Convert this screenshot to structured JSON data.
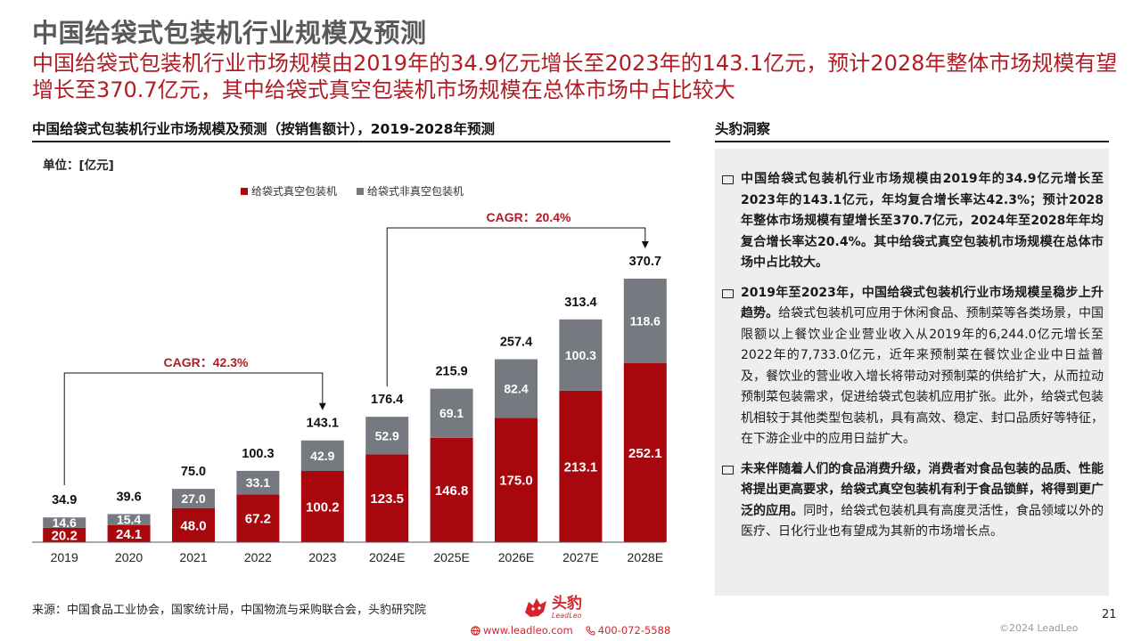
{
  "page_title": "中国给袋式包装机行业规模及预测",
  "headline": "中国给袋式包装机行业市场规模由2019年的34.9亿元增长至2023年的143.1亿元，预计2028年整体市场规模有望增长至370.7亿元，其中给袋式真空包装机市场规模在总体市场中占比较大",
  "left_section_title": "中国给袋式包装机行业市场规模及预测（按销售额计），2019-2028年预测",
  "right_section_title": "头豹洞察",
  "unit_label": "单位：[亿元]",
  "colors": {
    "vacuum": "#a8070d",
    "non_vacuum": "#767a80",
    "headline": "#b01c24",
    "brand": "#d3252b"
  },
  "chart_data": {
    "type": "bar",
    "stacked": true,
    "categories": [
      "2019",
      "2020",
      "2021",
      "2022",
      "2023",
      "2024E",
      "2025E",
      "2026E",
      "2027E",
      "2028E"
    ],
    "series": [
      {
        "name": "给袋式真空包装机",
        "values": [
          20.2,
          24.1,
          48.0,
          67.2,
          100.2,
          123.5,
          146.8,
          175.0,
          213.1,
          252.1
        ]
      },
      {
        "name": "给袋式非真空包装机",
        "values": [
          14.6,
          15.4,
          27.0,
          33.1,
          42.9,
          52.9,
          69.1,
          82.4,
          100.3,
          118.6
        ]
      }
    ],
    "totals": [
      34.9,
      39.6,
      75.0,
      100.3,
      143.1,
      176.4,
      215.9,
      257.4,
      313.4,
      370.7
    ],
    "annotations": [
      {
        "text": "CAGR：42.3%",
        "from": "2019",
        "to": "2023"
      },
      {
        "text": "CAGR：20.4%",
        "from": "2024E",
        "to": "2028E"
      }
    ],
    "ylim": [
      0,
      370.7
    ],
    "legend_position": "top"
  },
  "insights": [
    {
      "bold": "中国给袋式包装机行业市场规模由2019年的34.9亿元增长至2023年的143.1亿元，年均复合增长率达42.3%；预计2028年整体市场规模有望增长至370.7亿元，2024年至2028年年均复合增长率达20.4%。其中给袋式真空包装机市场规模在总体市场中占比较大。",
      "normal": ""
    },
    {
      "bold": "2019年至2023年，中国给袋式包装机行业市场规模呈稳步上升趋势。",
      "normal": "给袋式包装机可应用于休闲食品、预制菜等各类场景，中国限额以上餐饮业企业营业收入从2019年的6,244.0亿元增长至2022年的7,733.0亿元，近年来预制菜在餐饮业企业中日益普及，餐饮业的营业收入增长将带动对预制菜的供给扩大，从而拉动预制菜包装需求，促进给袋式包装机应用扩张。此外，给袋式包装机相较于其他类型包装机，具有高效、稳定、封口品质好等特征，在下游企业中的应用日益扩大。"
    },
    {
      "bold": "未来伴随着人们的食品消费升级，消费者对食品包装的品质、性能将提出更高要求，给袋式真空包装机有利于食品锁鲜，将得到更广泛的应用。",
      "normal": "同时，给袋式包装机具有高度灵活性，食品领域以外的医疗、日化行业也有望成为其新的市场增长点。"
    }
  ],
  "source": "来源：中国食品工业协会，国家统计局，中国物流与采购联合会，头豹研究院",
  "logo": {
    "cn": "头豹",
    "en": "LeadLeo"
  },
  "contact": {
    "website": "www.leadleo.com",
    "phone": "400-072-5588"
  },
  "page_number": "21",
  "copyright": "©2024 LeadLeo"
}
